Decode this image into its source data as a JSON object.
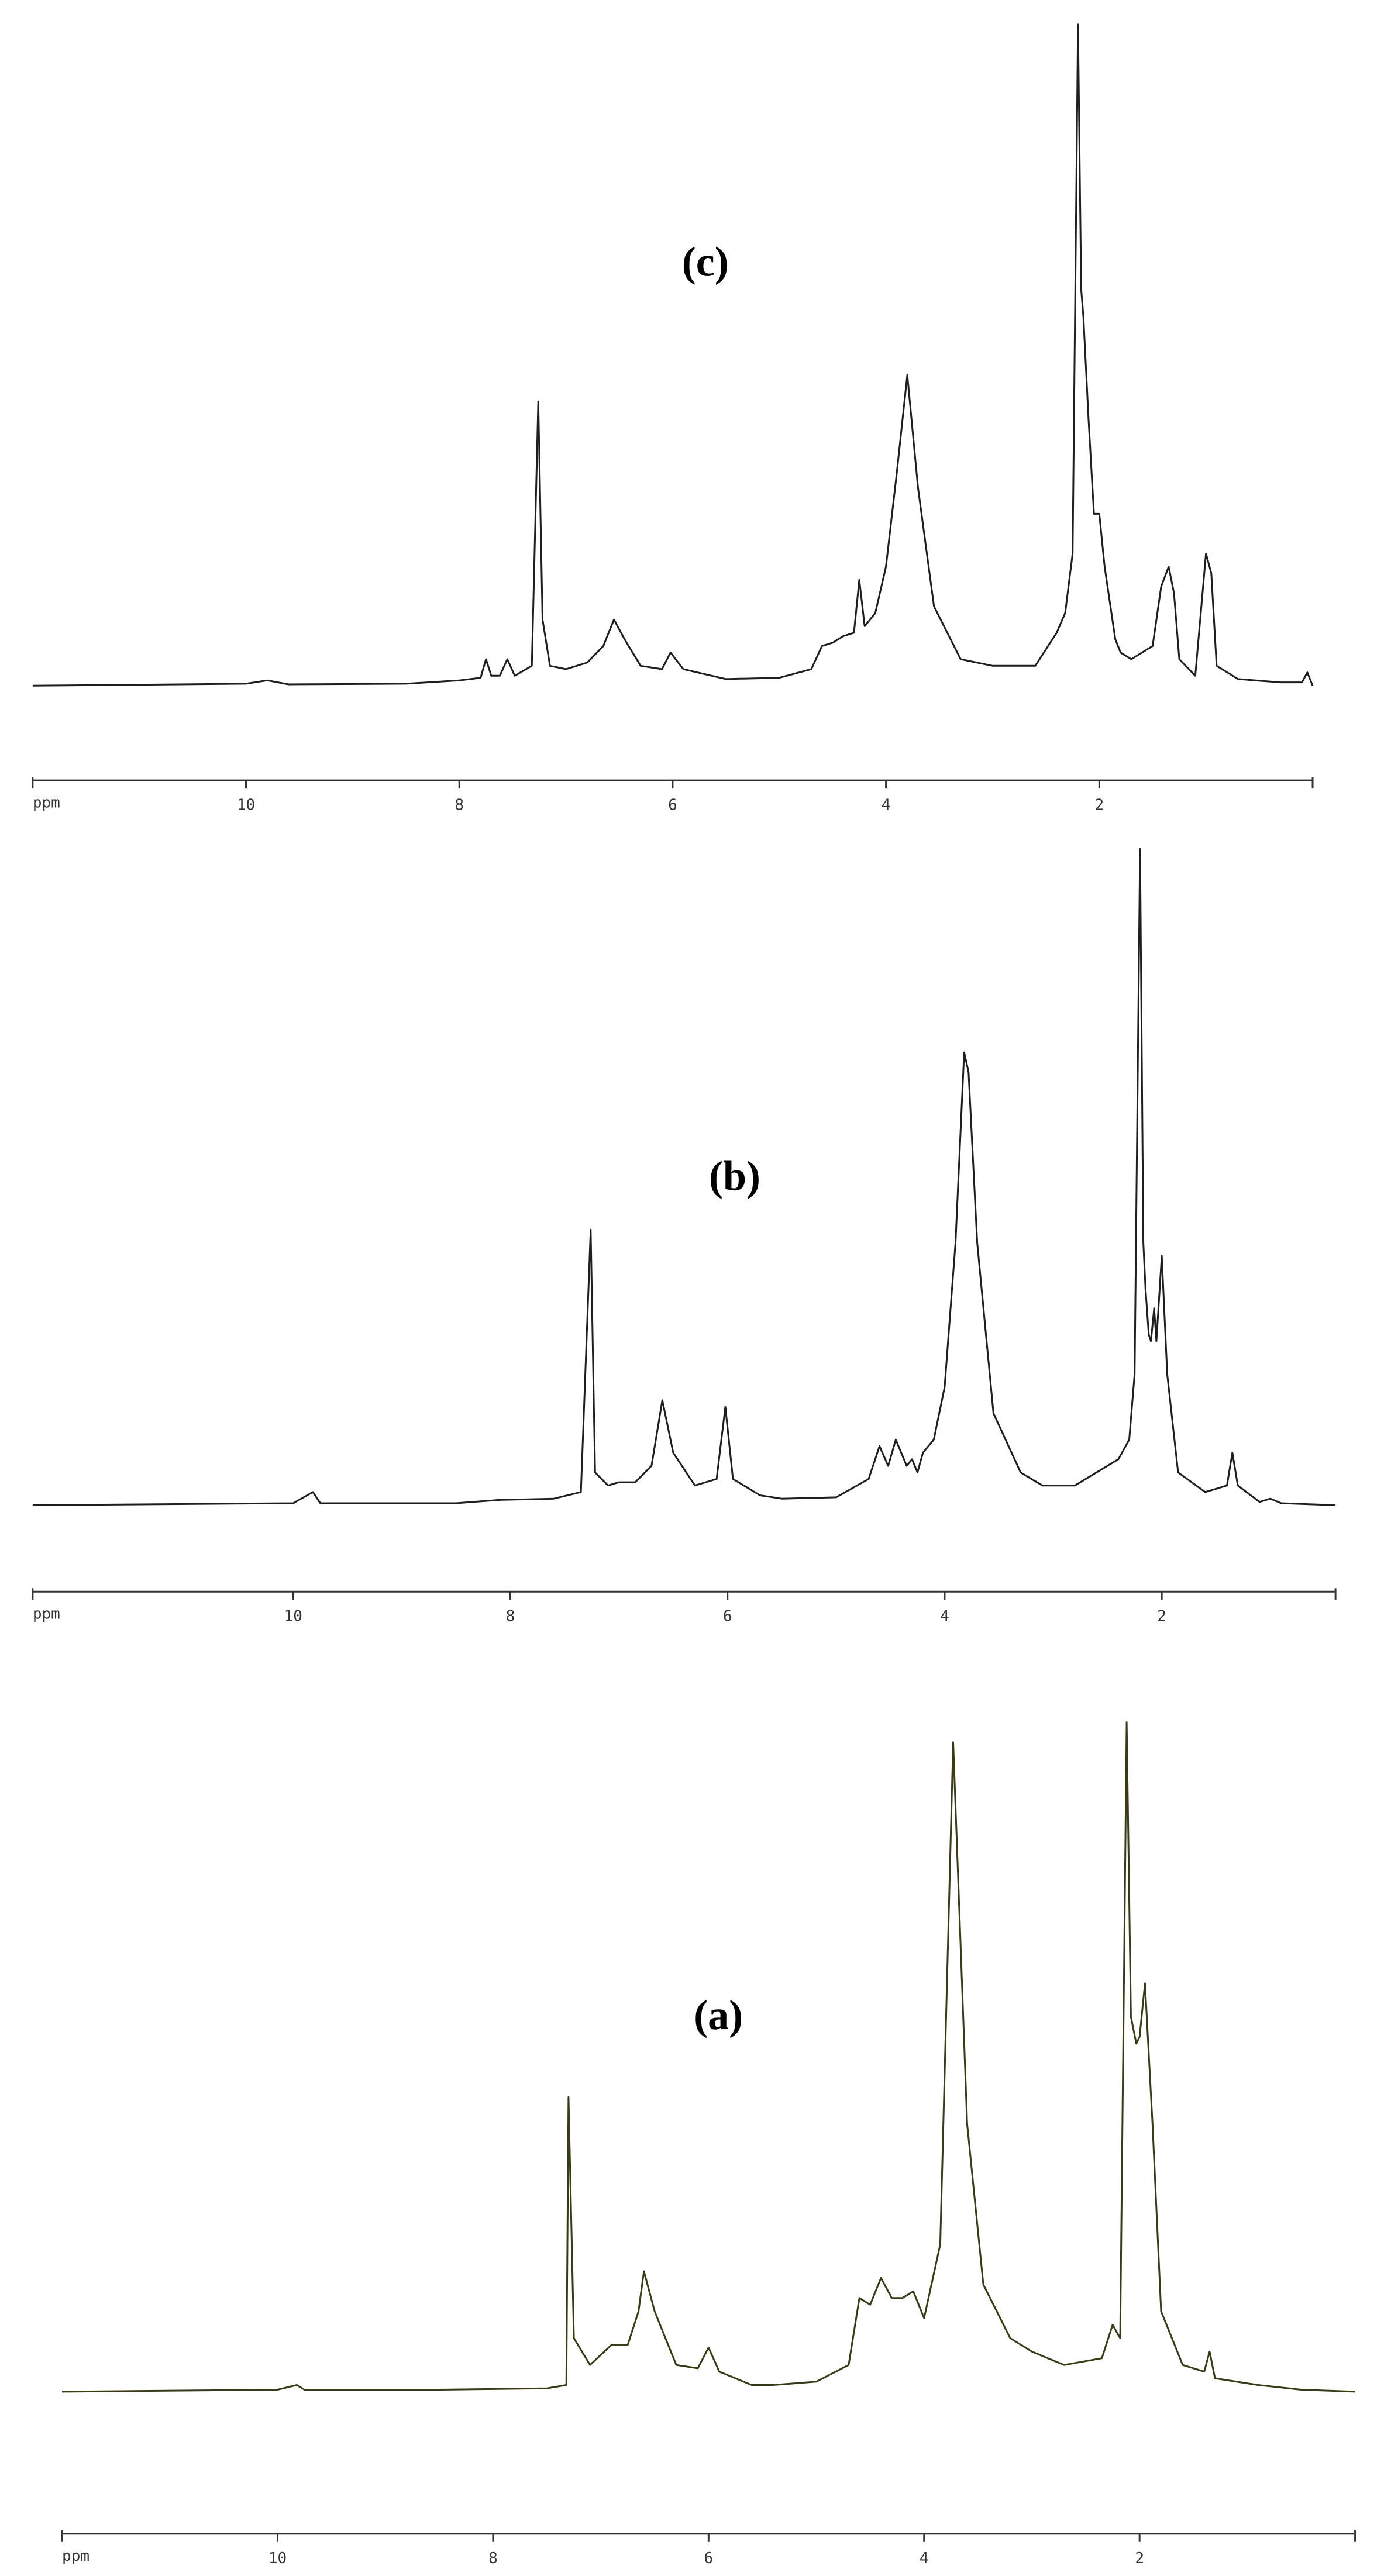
{
  "chart_data": [
    {
      "type": "line",
      "title": "(c)",
      "xlabel": "ppm",
      "color": "#1e1e1e",
      "xlim": [
        12,
        0
      ],
      "ylim": [
        0,
        100
      ],
      "xticks": [
        10,
        8,
        6,
        4,
        2
      ],
      "x": [
        12,
        10,
        9.8,
        9.6,
        8.5,
        8.0,
        7.8,
        7.75,
        7.7,
        7.62,
        7.55,
        7.48,
        7.32,
        7.26,
        7.22,
        7.15,
        7.0,
        6.8,
        6.65,
        6.55,
        6.45,
        6.3,
        6.1,
        6.02,
        5.9,
        5.5,
        5.0,
        4.7,
        4.6,
        4.5,
        4.4,
        4.3,
        4.25,
        4.2,
        4.1,
        4.0,
        3.9,
        3.8,
        3.7,
        3.55,
        3.3,
        3.0,
        2.6,
        2.4,
        2.32,
        2.25,
        2.2,
        2.17,
        2.15,
        2.1,
        2.05,
        2.0,
        1.95,
        1.85,
        1.8,
        1.7,
        1.5,
        1.42,
        1.35,
        1.3,
        1.25,
        1.1,
        1.0,
        0.95,
        0.9,
        0.7,
        0.3,
        0.1,
        0.05,
        0
      ],
      "values": [
        0,
        0.3,
        0.8,
        0.2,
        0.3,
        0.8,
        1.2,
        4,
        1.5,
        1.5,
        4,
        1.5,
        3,
        43,
        10,
        3,
        2.5,
        3.5,
        6,
        10,
        7,
        3,
        2.5,
        5,
        2.5,
        1,
        1.2,
        2.5,
        6,
        6.5,
        7.5,
        8,
        16,
        9,
        11,
        18,
        32,
        47,
        30,
        12,
        4,
        3,
        3,
        8,
        11,
        20,
        100,
        60,
        56,
        40,
        26,
        26,
        18,
        7,
        5,
        4,
        6,
        15,
        18,
        14,
        4,
        1.5,
        20,
        17,
        3,
        1,
        0.5,
        0.5,
        2,
        0
      ]
    },
    {
      "type": "line",
      "title": "(b)",
      "xlabel": "ppm",
      "color": "#1e1e1e",
      "xlim": [
        12.4,
        0.4
      ],
      "ylim": [
        0,
        100
      ],
      "xticks": [
        10,
        8,
        6,
        4,
        2
      ],
      "x": [
        12.4,
        10,
        9.82,
        9.75,
        8.5,
        8.1,
        7.6,
        7.35,
        7.26,
        7.22,
        7.1,
        7.0,
        6.85,
        6.7,
        6.6,
        6.5,
        6.3,
        6.1,
        6.02,
        5.95,
        5.7,
        5.5,
        5.0,
        4.7,
        4.6,
        4.52,
        4.45,
        4.35,
        4.3,
        4.25,
        4.2,
        4.1,
        4.0,
        3.9,
        3.82,
        3.78,
        3.7,
        3.55,
        3.3,
        3.1,
        2.8,
        2.4,
        2.3,
        2.25,
        2.2,
        2.17,
        2.15,
        2.12,
        2.1,
        2.07,
        2.05,
        2.0,
        1.95,
        1.85,
        1.6,
        1.4,
        1.35,
        1.3,
        1.1,
        1.0,
        0.9,
        0.4
      ],
      "values": [
        0,
        0.3,
        2,
        0.3,
        0.3,
        0.8,
        1,
        2,
        42,
        5,
        3,
        3.5,
        3.5,
        6,
        16,
        8,
        3,
        4,
        15,
        4,
        1.5,
        1,
        1.2,
        4,
        9,
        6,
        10,
        6,
        7,
        5,
        8,
        10,
        18,
        40,
        69,
        66,
        40,
        14,
        5,
        3,
        3,
        7,
        10,
        20,
        100,
        40,
        33,
        26,
        25,
        30,
        25,
        38,
        20,
        5,
        2,
        3,
        8,
        3,
        0.5,
        1,
        0.3,
        0
      ]
    },
    {
      "type": "line",
      "title": "(a)",
      "xlabel": "ppm",
      "color": "#3a3a18",
      "xlim": [
        12,
        0
      ],
      "ylim": [
        0,
        100
      ],
      "xticks": [
        10,
        8,
        6,
        4,
        2
      ],
      "x": [
        12,
        10,
        9.82,
        9.75,
        8.5,
        7.5,
        7.32,
        7.3,
        7.25,
        7.1,
        6.9,
        6.75,
        6.65,
        6.6,
        6.5,
        6.3,
        6.1,
        6.0,
        5.9,
        5.6,
        5.4,
        5.0,
        4.7,
        4.6,
        4.5,
        4.4,
        4.3,
        4.2,
        4.1,
        4.0,
        3.85,
        3.73,
        3.6,
        3.45,
        3.2,
        3.0,
        2.7,
        2.35,
        2.25,
        2.18,
        2.12,
        2.08,
        2.03,
        2.0,
        1.95,
        1.88,
        1.8,
        1.6,
        1.4,
        1.35,
        1.3,
        0.9,
        0.5,
        0
      ],
      "values": [
        0,
        0.3,
        1,
        0.3,
        0.3,
        0.5,
        1,
        44,
        8,
        4,
        7,
        7,
        12,
        18,
        12,
        4,
        3.5,
        6.6,
        3,
        1,
        1,
        1.5,
        4,
        14,
        13,
        17,
        14,
        14,
        15,
        11,
        22,
        97,
        40,
        16,
        8,
        6,
        4,
        5,
        10,
        8,
        100,
        56,
        52,
        53,
        61,
        40,
        12,
        4,
        3,
        6,
        2,
        1,
        0.3,
        0
      ]
    }
  ]
}
